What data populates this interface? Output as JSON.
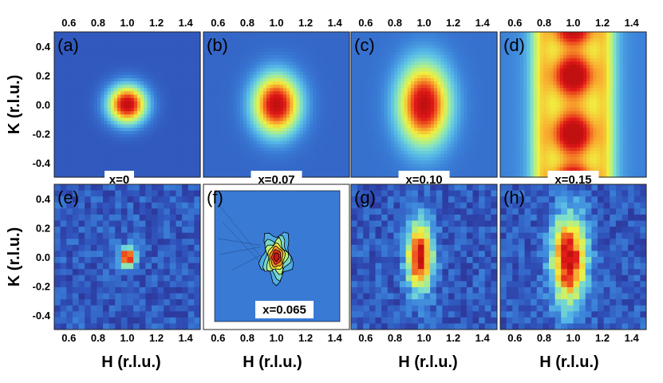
{
  "chart_data": {
    "type": "heatmap",
    "figure_description_axes": {
      "top_tick_labels": [
        "0.6",
        "0.8",
        "1.0",
        "1.2",
        "1.4"
      ],
      "bottom_tick_labels": [
        "0.6",
        "0.8",
        "1.0",
        "1.2",
        "1.4"
      ],
      "y_tick_labels": [
        "0.4",
        "0.2",
        "0.0",
        "-0.2",
        "-0.4"
      ],
      "xlabel": "H (r.l.u.)",
      "ylabel": "K (r.l.u.)",
      "xlim": [
        0.5,
        1.5
      ],
      "ylim": [
        -0.5,
        0.5
      ]
    },
    "panels": [
      {
        "label": "(a)",
        "x_tag": "x=0",
        "style": "smooth",
        "peak_h": 1.0,
        "peak_k": 0.0,
        "sigma_h": 0.09,
        "sigma_k": 0.09,
        "background": 0.12
      },
      {
        "label": "(b)",
        "x_tag": "x=0.07",
        "style": "smooth",
        "peak_h": 1.0,
        "peak_k": 0.0,
        "sigma_h": 0.11,
        "sigma_k": 0.14,
        "background": 0.15
      },
      {
        "label": "(c)",
        "x_tag": "x=0.10",
        "style": "smooth",
        "peak_h": 1.0,
        "peak_k": 0.0,
        "sigma_h": 0.12,
        "sigma_k": 0.19,
        "background": 0.17
      },
      {
        "label": "(d)",
        "x_tag": "x=0.15",
        "style": "smooth_split",
        "peak_h": 1.0,
        "peak_k": 0.0,
        "sigma_h": 0.12,
        "sigma_k": 0.4,
        "background": 0.2
      },
      {
        "label": "(e)",
        "x_tag": "",
        "style": "pixel",
        "peak_h": 1.0,
        "peak_k": 0.0,
        "sigma_h": 0.035,
        "sigma_k": 0.045,
        "background": 0.12
      },
      {
        "label": "(f)",
        "x_tag": "x=0.065",
        "style": "contour",
        "peak_h": 1.0,
        "peak_k": 0.0,
        "sigma_h": 0.05,
        "sigma_k": 0.08,
        "background": 0.18
      },
      {
        "label": "(g)",
        "x_tag": "",
        "style": "pixel",
        "peak_h": 0.97,
        "peak_k": 0.0,
        "sigma_h": 0.06,
        "sigma_k": 0.16,
        "background": 0.12
      },
      {
        "label": "(h)",
        "x_tag": "",
        "style": "pixel",
        "peak_h": 0.97,
        "peak_k": -0.02,
        "sigma_h": 0.08,
        "sigma_k": 0.21,
        "background": 0.12
      }
    ]
  },
  "colors": {
    "colormap": [
      "#2b2a8a",
      "#2f4fb8",
      "#3a7fd8",
      "#56b8e8",
      "#7fe0c8",
      "#b8f080",
      "#f0f040",
      "#f8b030",
      "#f06020",
      "#e01818",
      "#c01010"
    ]
  }
}
